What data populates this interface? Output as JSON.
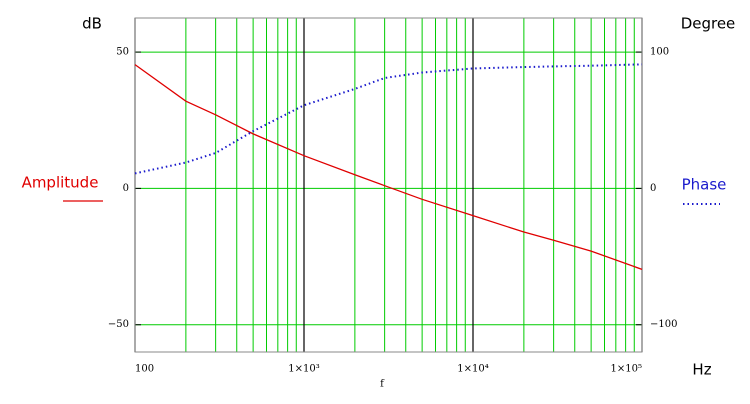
{
  "chart_data": {
    "type": "line",
    "y_label": "dB",
    "y2_label": "Degree",
    "x_unit": "Hz",
    "x_label": "f",
    "x": [
      100,
      200,
      300,
      500,
      1000,
      2000,
      3000,
      5000,
      10000,
      20000,
      30000,
      50000,
      100000
    ],
    "series": [
      {
        "name": "Amplitude",
        "color": "#e00000",
        "dash": "solid",
        "axis": "y",
        "values": [
          45.4,
          32,
          27,
          20,
          12,
          5,
          1,
          -4,
          -10,
          -16,
          -19,
          -23,
          -29.7
        ]
      },
      {
        "name": "Phase",
        "color": "#1a1acc",
        "dash": "dotted",
        "axis": "y2",
        "values": [
          11,
          19,
          26,
          42,
          61,
          73,
          81,
          85,
          88,
          89,
          89.5,
          90,
          91
        ]
      }
    ],
    "xscale": "log",
    "xlim": [
      100,
      100000
    ],
    "xticks": [
      100,
      {
        "value": 1000,
        "label": "1×10³"
      },
      {
        "value": 10000,
        "label": "1×10⁴"
      },
      {
        "value": 100000,
        "label": "1×10⁵"
      }
    ],
    "x_minor_gridlines": [
      200,
      300,
      400,
      500,
      600,
      700,
      800,
      900,
      2000,
      3000,
      4000,
      5000,
      6000,
      7000,
      8000,
      9000,
      20000,
      30000,
      40000,
      50000,
      60000,
      70000,
      80000,
      90000
    ],
    "ylim": [
      -60,
      62.5
    ],
    "yticks": [
      50,
      0,
      {
        "value": -50,
        "label": "−50"
      }
    ],
    "y2lim": [
      -120,
      125
    ],
    "y2ticks": [
      100,
      0,
      {
        "value": -100,
        "label": "−100"
      }
    ],
    "grid": true,
    "grid_color": "#00cc00",
    "major_grid_color": "#000000"
  }
}
